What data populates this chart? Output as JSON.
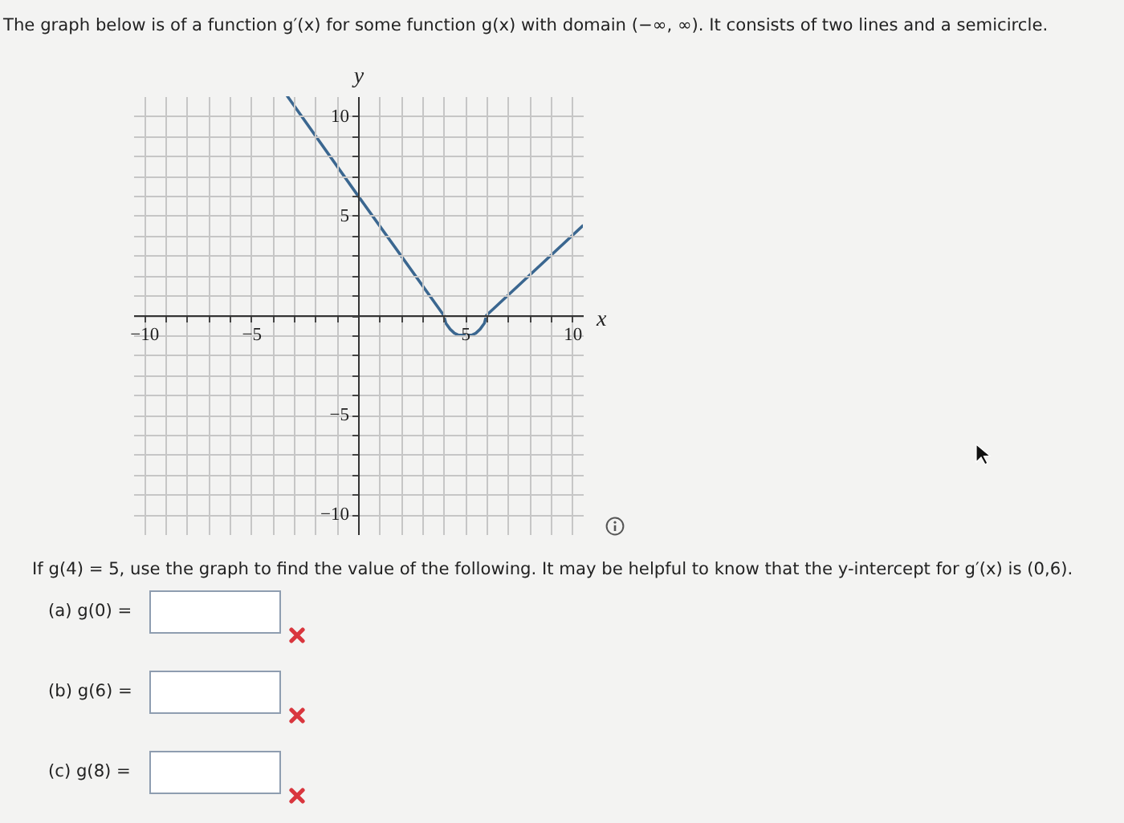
{
  "chart_data": {
    "type": "line",
    "title": "The graph below is of a function g′(x) for some function g(x) with domain (−∞, ∞). It consists of two lines and a semicircle.",
    "xlabel": "x",
    "ylabel": "y",
    "x": [
      -3.3,
      0,
      4,
      4.1,
      4.3,
      4.5,
      4.7,
      5,
      5.3,
      5.5,
      5.7,
      5.9,
      6,
      10.5
    ],
    "values": [
      11,
      6,
      0,
      -0.4,
      -0.7,
      -0.9,
      -1,
      -1,
      -1,
      -0.9,
      -0.7,
      -0.4,
      0,
      4.5
    ],
    "color": "#3b6790",
    "xlim": [
      -10.5,
      10.5
    ],
    "ylim": [
      -11,
      11
    ],
    "xticks": [
      -10,
      {
        "value": -9,
        "label": null
      },
      {
        "value": -8,
        "label": null
      },
      {
        "value": -7,
        "label": null
      },
      {
        "value": -6,
        "label": null
      },
      -5,
      {
        "value": -4,
        "label": null
      },
      {
        "value": -3,
        "label": null
      },
      {
        "value": -2,
        "label": null
      },
      {
        "value": -1,
        "label": null
      },
      {
        "value": 0,
        "label": null
      },
      {
        "value": 1,
        "label": null
      },
      {
        "value": 2,
        "label": null
      },
      {
        "value": 3,
        "label": null
      },
      {
        "value": 4,
        "label": null
      },
      5,
      {
        "value": 6,
        "label": null
      },
      {
        "value": 7,
        "label": null
      },
      {
        "value": 8,
        "label": null
      },
      {
        "value": 9,
        "label": null
      },
      10
    ],
    "yticks": [
      -10,
      {
        "value": -9,
        "label": null
      },
      {
        "value": -8,
        "label": null
      },
      {
        "value": -7,
        "label": null
      },
      {
        "value": -6,
        "label": null
      },
      -5,
      {
        "value": -4,
        "label": null
      },
      {
        "value": -3,
        "label": null
      },
      {
        "value": -2,
        "label": null
      },
      {
        "value": -1,
        "label": null
      },
      {
        "value": 0,
        "label": null
      },
      {
        "value": 1,
        "label": null
      },
      {
        "value": 2,
        "label": null
      },
      {
        "value": 3,
        "label": null
      },
      {
        "value": 4,
        "label": null
      },
      5,
      {
        "value": 6,
        "label": null
      },
      {
        "value": 7,
        "label": null
      },
      {
        "value": 8,
        "label": null
      },
      {
        "value": 9,
        "label": null
      },
      10
    ],
    "grid": true,
    "line_style": "solid",
    "annotations": [
      "If g(4) = 5, use the graph to find the value of the following. It may be helpful to know that the y-intercept for g′(x) is (0,6).",
      "(a)  g(0) =",
      "(b)  g(6) =",
      "(c)  g(8) ="
    ]
  }
}
